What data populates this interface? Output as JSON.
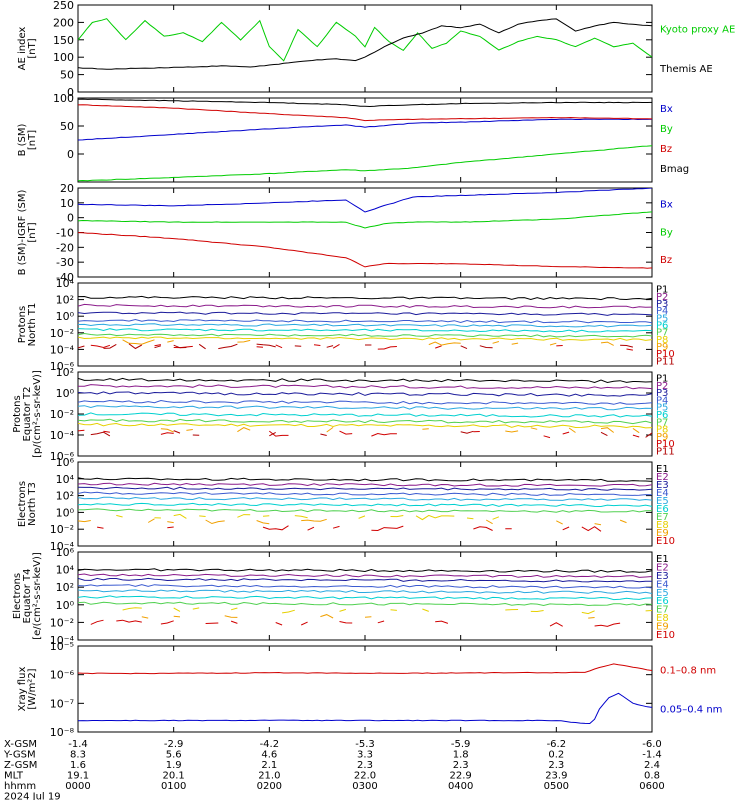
{
  "date_label": "2024 Jul 19",
  "ephemeris": {
    "rows": [
      {
        "label": "X-GSM",
        "values": [
          "-1.4",
          "-2.9",
          "-4.2",
          "-5.3",
          "-5.9",
          "-6.2",
          "-6.0"
        ]
      },
      {
        "label": "Y-GSM",
        "values": [
          "8.3",
          "5.6",
          "4.6",
          "3.3",
          "1.8",
          "0.2",
          "-1.4"
        ]
      },
      {
        "label": "Z-GSM",
        "values": [
          "1.6",
          "1.9",
          "2.1",
          "2.3",
          "2.3",
          "2.3",
          "2.4"
        ]
      },
      {
        "label": "MLT",
        "values": [
          "19.1",
          "20.1",
          "21.0",
          "22.0",
          "22.9",
          "23.9",
          "0.8"
        ]
      },
      {
        "label": "hhmm",
        "values": [
          "0000",
          "0100",
          "0200",
          "0300",
          "0400",
          "0500",
          "0600"
        ]
      }
    ]
  },
  "colors": {
    "black": "#000000",
    "red": "#d00000",
    "blue": "#0000cc",
    "green": "#00cc00",
    "purple": "#8a1a8a",
    "navy": "#1a1a9a",
    "royal": "#3a5ad0",
    "lightblue": "#2aa8e0",
    "cyan": "#00d0d0",
    "lime": "#50d050",
    "yellow": "#e6d000",
    "orange": "#f0a000",
    "darkred": "#b00000"
  },
  "chart_data": [
    {
      "type": "line",
      "id": "ae",
      "ylabel": [
        "AE index",
        "[nT]"
      ],
      "yscale": "linear",
      "ylim": [
        0,
        250
      ],
      "yticks": [
        0,
        50,
        100,
        150,
        200,
        250
      ],
      "ytick_labels": [
        "0",
        "50",
        "100",
        "150",
        "200",
        "250"
      ],
      "xlim": [
        0,
        6
      ],
      "series": [
        {
          "name": "Kyoto proxy AE",
          "color": "#00cc00",
          "x": [
            0,
            0.15,
            0.3,
            0.5,
            0.7,
            0.9,
            1.1,
            1.3,
            1.5,
            1.7,
            1.9,
            2.0,
            2.15,
            2.3,
            2.5,
            2.7,
            2.9,
            3.0,
            3.1,
            3.25,
            3.4,
            3.55,
            3.7,
            3.85,
            4.0,
            4.2,
            4.4,
            4.6,
            4.8,
            5.0,
            5.2,
            5.4,
            5.6,
            5.8,
            6.0
          ],
          "y": [
            150,
            200,
            210,
            150,
            205,
            160,
            170,
            145,
            200,
            150,
            205,
            130,
            90,
            180,
            130,
            200,
            160,
            130,
            185,
            145,
            120,
            170,
            125,
            140,
            175,
            160,
            120,
            145,
            160,
            150,
            130,
            155,
            130,
            140,
            100
          ]
        },
        {
          "name": "Themis AE",
          "color": "#000000",
          "x": [
            0,
            0.3,
            0.6,
            0.9,
            1.2,
            1.5,
            1.8,
            2.1,
            2.4,
            2.7,
            2.9,
            3.0,
            3.2,
            3.4,
            3.6,
            3.8,
            4.0,
            4.2,
            4.4,
            4.6,
            4.8,
            5.0,
            5.2,
            5.4,
            5.6,
            5.8,
            6.0
          ],
          "y": [
            70,
            65,
            68,
            70,
            72,
            75,
            72,
            80,
            90,
            95,
            90,
            100,
            130,
            155,
            170,
            190,
            185,
            195,
            170,
            195,
            205,
            210,
            175,
            190,
            200,
            195,
            190
          ]
        }
      ]
    },
    {
      "type": "line",
      "id": "b_sm",
      "ylabel": [
        "B (SM)",
        "[nT]"
      ],
      "yscale": "linear",
      "ylim": [
        -50,
        100
      ],
      "yticks": [
        -50,
        0,
        50,
        100
      ],
      "ytick_labels": [
        "",
        "0",
        "50",
        "100"
      ],
      "xlim": [
        0,
        6
      ],
      "series": [
        {
          "name": "Bx",
          "color": "#0000cc",
          "x": [
            0,
            1,
            2,
            2.8,
            3.0,
            3.5,
            4,
            5,
            6
          ],
          "y": [
            25,
            35,
            45,
            52,
            48,
            55,
            57,
            62,
            62
          ]
        },
        {
          "name": "By",
          "color": "#00cc00",
          "x": [
            0,
            1,
            2,
            2.8,
            3.0,
            3.5,
            4,
            5,
            6
          ],
          "y": [
            -48,
            -42,
            -35,
            -28,
            -30,
            -25,
            -15,
            0,
            15
          ]
        },
        {
          "name": "Bz",
          "color": "#d00000",
          "x": [
            0,
            1,
            2,
            2.8,
            3.0,
            3.5,
            4,
            5,
            6
          ],
          "y": [
            88,
            82,
            72,
            65,
            60,
            62,
            63,
            65,
            63
          ]
        },
        {
          "name": "Bmag",
          "color": "#000000",
          "x": [
            0,
            1,
            2,
            2.8,
            3.0,
            3.5,
            4,
            5,
            6
          ],
          "y": [
            98,
            95,
            92,
            88,
            85,
            88,
            90,
            92,
            92
          ]
        }
      ]
    },
    {
      "type": "line",
      "id": "b_igrf",
      "ylabel": [
        "B (SM)-IGRF (SM)",
        "[nT]"
      ],
      "yscale": "linear",
      "ylim": [
        -40,
        20
      ],
      "yticks": [
        -40,
        -30,
        -20,
        -10,
        0,
        10,
        20
      ],
      "ytick_labels": [
        "-40",
        "-30",
        "-20",
        "-10",
        "0",
        "10",
        "20"
      ],
      "xlim": [
        0,
        6
      ],
      "series": [
        {
          "name": "Bx",
          "color": "#0000cc",
          "x": [
            0,
            1,
            2,
            2.8,
            3.0,
            3.2,
            3.5,
            4,
            5,
            6
          ],
          "y": [
            9,
            8,
            10,
            12,
            4,
            8,
            14,
            15,
            17,
            20
          ]
        },
        {
          "name": "By",
          "color": "#00cc00",
          "x": [
            0,
            1,
            2,
            2.8,
            3.0,
            3.2,
            3.5,
            4,
            5,
            6
          ],
          "y": [
            -2,
            -3,
            -3,
            -3,
            -7,
            -4,
            -3,
            -3,
            -1,
            4
          ]
        },
        {
          "name": "Bz",
          "color": "#d00000",
          "x": [
            0,
            1,
            2,
            2.8,
            3.0,
            3.2,
            3.5,
            4,
            5,
            6
          ],
          "y": [
            -10,
            -14,
            -20,
            -27,
            -33,
            -31,
            -31,
            -31,
            -33,
            -34
          ]
        }
      ]
    },
    {
      "type": "line",
      "id": "protons_t1",
      "ylabel": [
        "Protons",
        "North T1"
      ],
      "yscale": "log",
      "ylim": [
        -6,
        4
      ],
      "yticks": [
        -6,
        -4,
        -2,
        0,
        2,
        4
      ],
      "ytick_labels": [
        "10⁻⁶",
        "10⁻⁴",
        "10⁻²",
        "10⁰",
        "10²",
        "10⁴"
      ],
      "xlim": [
        0,
        6
      ],
      "channels": [
        {
          "name": "P1",
          "color": "#000000",
          "level": 2.3
        },
        {
          "name": "P2",
          "color": "#8a1a8a",
          "level": 1.3
        },
        {
          "name": "P3",
          "color": "#1a1a9a",
          "level": 0.4
        },
        {
          "name": "P4",
          "color": "#3a5ad0",
          "level": -0.5
        },
        {
          "name": "P5",
          "color": "#2aa8e0",
          "level": -1.0
        },
        {
          "name": "P6",
          "color": "#00d0d0",
          "level": -1.6
        },
        {
          "name": "P7",
          "color": "#50d050",
          "level": -2.2
        },
        {
          "name": "P8",
          "color": "#e6d000",
          "level": -2.6
        },
        {
          "name": "P9",
          "color": "#f0a000",
          "level": -3.1
        },
        {
          "name": "P10",
          "color": "#d00000",
          "level": -3.6
        },
        {
          "name": "P11",
          "color": "#b00000",
          "level": -3.6
        }
      ]
    },
    {
      "type": "line",
      "id": "protons_t2",
      "ylabel": [
        "Protons",
        "Equator T2",
        "[p/(cm²-s-sr-keV)]"
      ],
      "yscale": "log",
      "ylim": [
        -6,
        2
      ],
      "yticks": [
        -6,
        -4,
        -2,
        0,
        2
      ],
      "ytick_labels": [
        "10⁻⁶",
        "10⁻⁴",
        "10⁻²",
        "10⁰",
        "10²"
      ],
      "xlim": [
        0,
        6
      ],
      "channels": [
        {
          "name": "P1",
          "color": "#000000",
          "level": 1.3
        },
        {
          "name": "P2",
          "color": "#8a1a8a",
          "level": 0.7
        },
        {
          "name": "P3",
          "color": "#1a1a9a",
          "level": 0.0
        },
        {
          "name": "P4",
          "color": "#3a5ad0",
          "level": -0.8
        },
        {
          "name": "P5",
          "color": "#2aa8e0",
          "level": -1.3
        },
        {
          "name": "P6",
          "color": "#00d0d0",
          "level": -2.0
        },
        {
          "name": "P7",
          "color": "#50d050",
          "level": -2.6
        },
        {
          "name": "P8",
          "color": "#e6d000",
          "level": -3.0
        },
        {
          "name": "P9",
          "color": "#f0a000",
          "level": -3.4
        },
        {
          "name": "P10",
          "color": "#d00000",
          "level": -3.8
        },
        {
          "name": "P11",
          "color": "#b00000",
          "level": -3.8
        }
      ]
    },
    {
      "type": "line",
      "id": "electrons_t3",
      "ylabel": [
        "Electrons",
        "North T3"
      ],
      "yscale": "log",
      "ylim": [
        -4,
        6
      ],
      "yticks": [
        -4,
        -2,
        0,
        2,
        4,
        6
      ],
      "ytick_labels": [
        "10⁻⁴",
        "10⁻²",
        "10⁰",
        "10²",
        "10⁴",
        "10⁶"
      ],
      "xlim": [
        0,
        6
      ],
      "channels": [
        {
          "name": "E1",
          "color": "#000000",
          "level": 4.0
        },
        {
          "name": "E2",
          "color": "#8a1a8a",
          "level": 3.4
        },
        {
          "name": "E3",
          "color": "#1a1a9a",
          "level": 2.9
        },
        {
          "name": "E4",
          "color": "#3a5ad0",
          "level": 2.3
        },
        {
          "name": "E5",
          "color": "#2aa8e0",
          "level": 1.7
        },
        {
          "name": "E6",
          "color": "#00d0d0",
          "level": 1.0
        },
        {
          "name": "E7",
          "color": "#50d050",
          "level": 0.3
        },
        {
          "name": "E8",
          "color": "#e6d000",
          "level": -0.5
        },
        {
          "name": "E9",
          "color": "#f0a000",
          "level": -1.0
        },
        {
          "name": "E10",
          "color": "#d00000",
          "level": -1.8
        }
      ]
    },
    {
      "type": "line",
      "id": "electrons_t4",
      "ylabel": [
        "Electrons",
        "Equator T4",
        "[e/(cm²-s-sr-keV)]"
      ],
      "yscale": "log",
      "ylim": [
        -4,
        6
      ],
      "yticks": [
        -4,
        -2,
        0,
        2,
        4,
        6
      ],
      "ytick_labels": [
        "10⁻⁴",
        "10⁻²",
        "10⁰",
        "10²",
        "10⁴",
        "10⁶"
      ],
      "xlim": [
        0,
        6
      ],
      "channels": [
        {
          "name": "E1",
          "color": "#000000",
          "level": 4.0
        },
        {
          "name": "E2",
          "color": "#8a1a8a",
          "level": 3.4
        },
        {
          "name": "E3",
          "color": "#1a1a9a",
          "level": 2.9
        },
        {
          "name": "E4",
          "color": "#3a5ad0",
          "level": 2.2
        },
        {
          "name": "E5",
          "color": "#2aa8e0",
          "level": 1.6
        },
        {
          "name": "E6",
          "color": "#00d0d0",
          "level": 0.9
        },
        {
          "name": "E7",
          "color": "#50d050",
          "level": 0.2
        },
        {
          "name": "E8",
          "color": "#e6d000",
          "level": -0.6
        },
        {
          "name": "E9",
          "color": "#f0a000",
          "level": -1.2
        },
        {
          "name": "E10",
          "color": "#d00000",
          "level": -2.0
        }
      ]
    },
    {
      "type": "line",
      "id": "xray",
      "ylabel": [
        "Xray flux",
        "[W/m²2]"
      ],
      "yscale": "log",
      "ylim": [
        -8,
        -5
      ],
      "yticks": [
        -8,
        -7,
        -6,
        -5
      ],
      "ytick_labels": [
        "10⁻⁸",
        "10⁻⁷",
        "10⁻⁶",
        "10⁻⁵"
      ],
      "xlim": [
        0,
        6
      ],
      "series": [
        {
          "name": "0.1–0.8 nm",
          "color": "#d00000",
          "x": [
            0,
            0.5,
            1,
            1.5,
            2,
            2.5,
            3,
            3.5,
            4,
            4.5,
            5,
            5.3,
            5.45,
            5.6,
            5.75,
            5.9,
            6.0
          ],
          "y": [
            -5.95,
            -5.96,
            -5.95,
            -5.95,
            -5.93,
            -5.94,
            -5.95,
            -5.95,
            -5.94,
            -5.93,
            -5.93,
            -5.92,
            -5.75,
            -5.62,
            -5.7,
            -5.8,
            -5.85
          ]
        },
        {
          "name": "0.05–0.4 nm",
          "color": "#0000cc",
          "x": [
            0,
            0.5,
            1,
            1.5,
            2,
            2.5,
            3,
            3.5,
            4,
            4.5,
            5,
            5.3,
            5.38,
            5.45,
            5.55,
            5.65,
            5.8,
            6.0
          ],
          "y": [
            -7.6,
            -7.6,
            -7.6,
            -7.6,
            -7.59,
            -7.6,
            -7.6,
            -7.6,
            -7.6,
            -7.6,
            -7.6,
            -7.7,
            -7.7,
            -7.2,
            -6.8,
            -6.65,
            -7.0,
            -7.15
          ]
        }
      ]
    }
  ]
}
